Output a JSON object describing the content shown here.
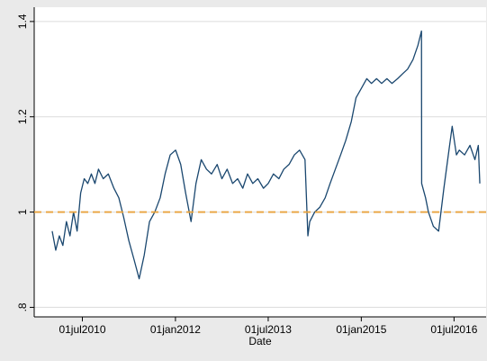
{
  "chart_data": {
    "type": "line",
    "x_label": "Date",
    "x": [
      "2010-01-04",
      "2010-01-25",
      "2010-02-15",
      "2010-03-08",
      "2010-03-29",
      "2010-04-19",
      "2010-05-10",
      "2010-05-31",
      "2010-06-21",
      "2010-07-12",
      "2010-08-02",
      "2010-08-23",
      "2010-09-13",
      "2010-10-04",
      "2010-11-01",
      "2010-12-01",
      "2011-01-03",
      "2011-02-01",
      "2011-03-01",
      "2011-04-01",
      "2011-05-02",
      "2011-06-01",
      "2011-07-01",
      "2011-08-01",
      "2011-09-01",
      "2011-10-03",
      "2011-11-01",
      "2011-12-01",
      "2012-01-02",
      "2012-02-01",
      "2012-03-01",
      "2012-04-02",
      "2012-05-01",
      "2012-06-01",
      "2012-07-02",
      "2012-08-01",
      "2012-09-03",
      "2012-10-01",
      "2012-11-01",
      "2012-12-03",
      "2013-01-02",
      "2013-02-01",
      "2013-03-01",
      "2013-04-01",
      "2013-05-01",
      "2013-06-03",
      "2013-07-01",
      "2013-08-01",
      "2013-09-02",
      "2013-10-01",
      "2013-11-01",
      "2013-12-02",
      "2014-01-02",
      "2014-02-03",
      "2014-02-20",
      "2014-03-03",
      "2014-04-01",
      "2014-05-01",
      "2014-06-02",
      "2014-07-01",
      "2014-08-01",
      "2014-09-01",
      "2014-10-01",
      "2014-11-03",
      "2014-12-01",
      "2015-01-02",
      "2015-02-02",
      "2015-03-02",
      "2015-04-01",
      "2015-05-01",
      "2015-06-01",
      "2015-07-01",
      "2015-08-03",
      "2015-09-01",
      "2015-10-01",
      "2015-11-02",
      "2015-12-01",
      "2015-12-22",
      "2015-12-23",
      "2016-01-15",
      "2016-02-01",
      "2016-03-01",
      "2016-04-01",
      "2016-05-02",
      "2016-06-01",
      "2016-06-20",
      "2016-07-15",
      "2016-08-01",
      "2016-09-01",
      "2016-10-03",
      "2016-11-01",
      "2016-11-21",
      "2016-11-30"
    ],
    "values": [
      0.96,
      0.92,
      0.95,
      0.93,
      0.98,
      0.95,
      1.0,
      0.96,
      1.04,
      1.07,
      1.06,
      1.08,
      1.06,
      1.09,
      1.07,
      1.08,
      1.05,
      1.03,
      0.99,
      0.94,
      0.9,
      0.86,
      0.91,
      0.98,
      1.0,
      1.03,
      1.08,
      1.12,
      1.13,
      1.1,
      1.04,
      0.98,
      1.06,
      1.11,
      1.09,
      1.08,
      1.1,
      1.07,
      1.09,
      1.06,
      1.07,
      1.05,
      1.08,
      1.06,
      1.07,
      1.05,
      1.06,
      1.08,
      1.07,
      1.09,
      1.1,
      1.12,
      1.13,
      1.11,
      0.95,
      0.98,
      1.0,
      1.01,
      1.03,
      1.06,
      1.09,
      1.12,
      1.15,
      1.19,
      1.24,
      1.26,
      1.28,
      1.27,
      1.28,
      1.27,
      1.28,
      1.27,
      1.28,
      1.29,
      1.3,
      1.32,
      1.35,
      1.38,
      1.06,
      1.03,
      1.0,
      0.97,
      0.96,
      1.05,
      1.13,
      1.18,
      1.12,
      1.13,
      1.12,
      1.14,
      1.11,
      1.14,
      1.06
    ],
    "color": "#1a476f",
    "xlim": [
      "2009-09-20",
      "2017-01-06"
    ],
    "xticks": [
      {
        "value": "2010-07-01",
        "label": "01jul2010"
      },
      {
        "value": "2012-01-01",
        "label": "01jan2012"
      },
      {
        "value": "2013-07-01",
        "label": "01jul2013"
      },
      {
        "value": "2015-01-01",
        "label": "01jan2015"
      },
      {
        "value": "2016-07-01",
        "label": "01jul2016"
      }
    ],
    "ylim": [
      0.78,
      1.43
    ],
    "yticks": [
      {
        "value": 0.8,
        "label": ".8"
      },
      1,
      1.2,
      1.4
    ],
    "grid": true,
    "reference_line": {
      "value": 1,
      "color": "#e8a33d"
    }
  }
}
